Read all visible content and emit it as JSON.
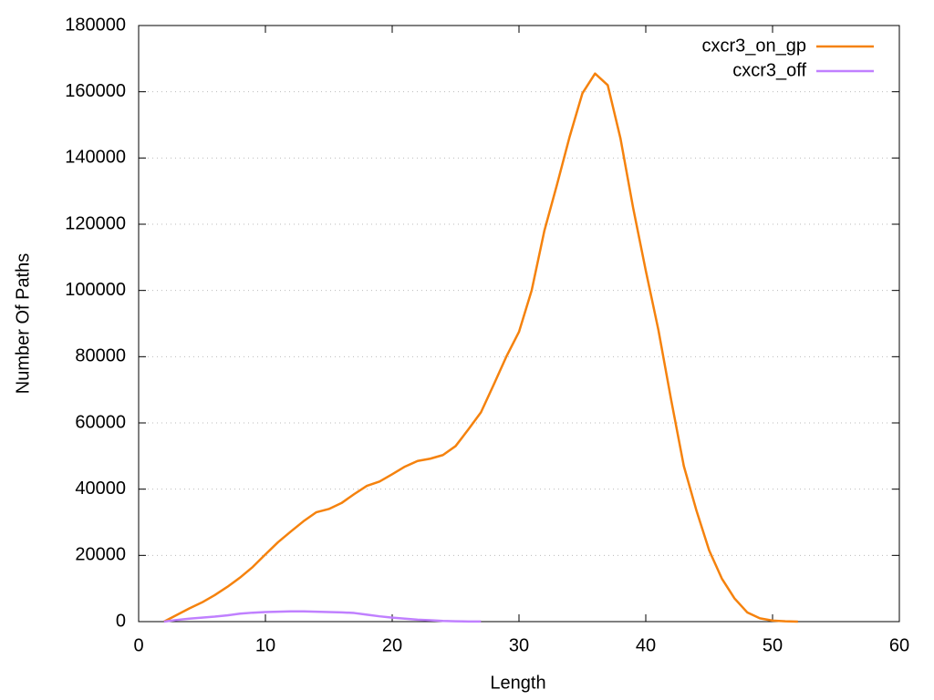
{
  "chart_data": {
    "type": "line",
    "xlabel": "Length",
    "ylabel": "Number Of Paths",
    "x": [
      2,
      3,
      4,
      5,
      6,
      7,
      8,
      9,
      10,
      11,
      12,
      13,
      14,
      15,
      16,
      17,
      18,
      19,
      20,
      21,
      22,
      23,
      24,
      25,
      26,
      27,
      28,
      29,
      30,
      31,
      32,
      33,
      34,
      35,
      36,
      37,
      38,
      39,
      40,
      41,
      42,
      43,
      44,
      45,
      46,
      47,
      48,
      49,
      50,
      51,
      52
    ],
    "series": [
      {
        "name": "cxcr3_on_gp",
        "color": "#f5820d",
        "values": [
          0,
          2000,
          4000,
          5800,
          8000,
          10500,
          13300,
          16500,
          20300,
          24000,
          27200,
          30300,
          33000,
          34000,
          35800,
          38500,
          41000,
          42300,
          44500,
          46800,
          48500,
          49200,
          50300,
          53000,
          58000,
          63200,
          71500,
          80000,
          87500,
          100000,
          118000,
          132000,
          146500,
          159500,
          165500,
          162000,
          146000,
          125000,
          106000,
          88000,
          67000,
          47000,
          33500,
          21500,
          13000,
          7000,
          2800,
          1000,
          300,
          100,
          0
        ]
      },
      {
        "name": "cxcr3_off",
        "color": "#c080ff",
        "values": [
          0,
          500,
          900,
          1200,
          1500,
          1900,
          2400,
          2700,
          2900,
          3000,
          3100,
          3100,
          3000,
          2900,
          2800,
          2600,
          2100,
          1600,
          1200,
          900,
          600,
          400,
          200,
          100,
          50,
          20,
          null,
          null,
          null,
          null,
          null,
          null,
          null,
          null,
          null,
          null,
          null,
          null,
          null,
          null,
          null,
          null,
          null,
          null,
          null,
          null,
          null,
          null,
          null,
          null,
          null
        ]
      }
    ],
    "xlim": [
      0,
      60
    ],
    "xticks": [
      0,
      10,
      20,
      30,
      40,
      50,
      60
    ],
    "ylim": [
      0,
      180000
    ],
    "yticks": [
      0,
      20000,
      40000,
      60000,
      80000,
      100000,
      120000,
      140000,
      160000,
      180000
    ],
    "grid": true,
    "legend": "top-right"
  }
}
